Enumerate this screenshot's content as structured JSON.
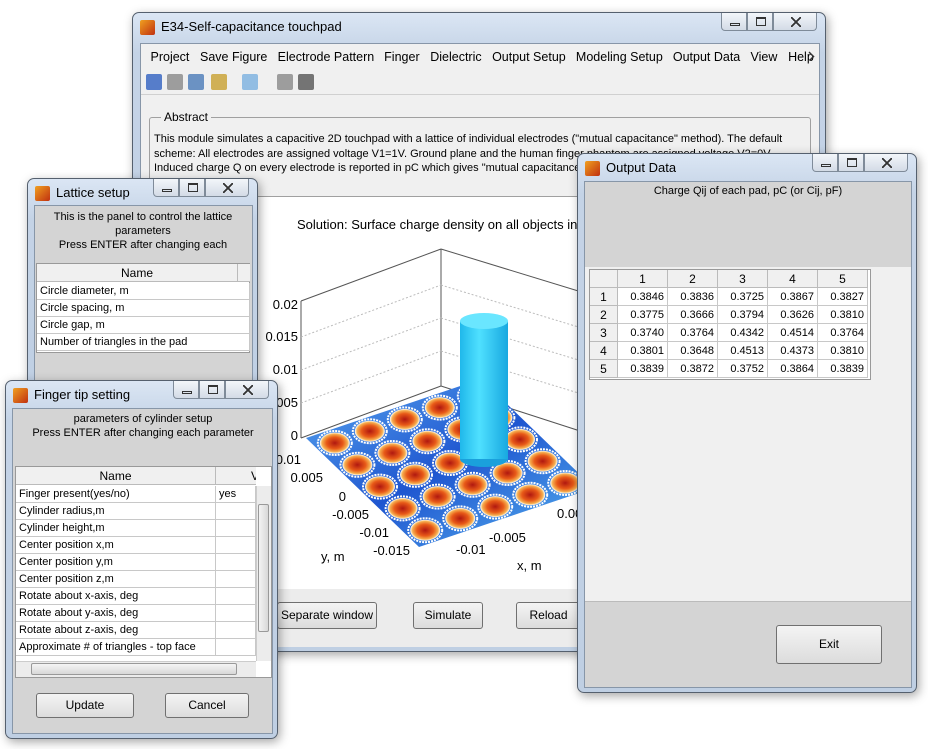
{
  "main_window": {
    "title": "E34-Self-capacitance touchpad",
    "menu": [
      "Project",
      "Save Figure",
      "Electrode Pattern",
      "Finger",
      "Dielectric",
      "Output Setup",
      "Modeling Setup",
      "Output Data",
      "View",
      "Help"
    ],
    "abstract": {
      "legend": "Abstract",
      "lines": [
        "This module simulates a capacitive 2D touchpad with a lattice of individual electrodes (\"mutual capacitance\" method). The default",
        "scheme: All electrodes are assigned voltage V1=1V. Ground plane and the human finger phantom are assigned voltage V2=0V.",
        "Induced charge Q on every electrode is reported in pC which gives \"mutual capacitance"
      ]
    },
    "plot": {
      "title": "Solution: Surface charge density on all objects in",
      "z_ticks": [
        "0.02",
        "0.015",
        "0.01",
        "0.005",
        "0"
      ],
      "y_ticks": [
        "0.01",
        "0.005",
        "0",
        "-0.005",
        "-0.01",
        "-0.015"
      ],
      "x_ticks": [
        "-0.01",
        "-0.005",
        "0.00"
      ],
      "y_label": "y, m",
      "x_label": "x, m"
    },
    "buttons": [
      "Separate window",
      "Simulate",
      "Reload"
    ]
  },
  "lattice_window": {
    "title": "Lattice setup",
    "info": [
      "This is the panel to control the lattice",
      "parameters",
      "Press ENTER after changing each"
    ],
    "header": "Name",
    "rows": [
      "Circle diameter, m",
      "Circle spacing, m",
      "Circle gap, m",
      "Number of triangles in the pad"
    ]
  },
  "finger_window": {
    "title": "Finger tip setting",
    "info": [
      "parameters of cylinder setup",
      "Press ENTER after changing each parameter"
    ],
    "headers": [
      "Name",
      "V"
    ],
    "rows": [
      "Finger present(yes/no)",
      "Cylinder radius,m",
      "Cylinder height,m",
      "Center position x,m",
      "Center position y,m",
      "Center position z,m",
      "Rotate about x-axis, deg",
      "Rotate about y-axis, deg",
      "Rotate about z-axis, deg",
      "Approximate # of triangles - top face"
    ],
    "values": [
      "yes"
    ],
    "buttons": [
      "Update",
      "Cancel"
    ]
  },
  "output_window": {
    "title": "Output Data",
    "caption": "Charge Qij of each pad, pC (or Cij, pF)",
    "columns": [
      1,
      2,
      3,
      4,
      5
    ],
    "rows": [
      {
        "label": 1,
        "values": [
          "0.3846",
          "0.3836",
          "0.3725",
          "0.3867",
          "0.3827"
        ]
      },
      {
        "label": 2,
        "values": [
          "0.3775",
          "0.3666",
          "0.3794",
          "0.3626",
          "0.3810"
        ]
      },
      {
        "label": 3,
        "values": [
          "0.3740",
          "0.3764",
          "0.4342",
          "0.4514",
          "0.3764"
        ]
      },
      {
        "label": 4,
        "values": [
          "0.3801",
          "0.3648",
          "0.4513",
          "0.4373",
          "0.3810"
        ]
      },
      {
        "label": 5,
        "values": [
          "0.3839",
          "0.3872",
          "0.3752",
          "0.3864",
          "0.3839"
        ]
      }
    ],
    "button": "Exit"
  }
}
